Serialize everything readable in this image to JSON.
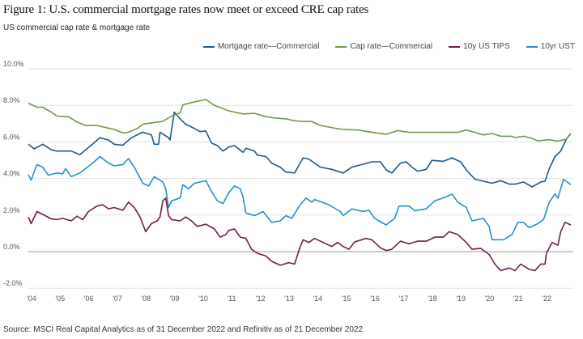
{
  "header": {
    "title": "Figure 1: U.S. commercial mortgage rates now meet or exceed CRE cap rates",
    "subtitle": "US commercial cap rate & mortgage rate"
  },
  "footer": {
    "source": "Source: MSCI Real Capital Analytics as of 31 December 2022 and Refinitiv as of 21 December 2022"
  },
  "chart_data": {
    "type": "line",
    "title": "US commercial cap rate & mortgage rate",
    "xlabel": "",
    "ylabel": "",
    "xlim": [
      2004,
      2022.95
    ],
    "ylim": [
      -2,
      10
    ],
    "grid": true,
    "legend_position": "top-right",
    "y_ticks": [
      "10.0%",
      "8.0%",
      "6.0%",
      "4.0%",
      "2.0%",
      "0.0%",
      "-2.0%"
    ],
    "y_tick_values": [
      10,
      8,
      6,
      4,
      2,
      0,
      -2
    ],
    "x_ticks": [
      "'04",
      "'05",
      "'06",
      "'07",
      "'08",
      "'09",
      "'10",
      "'11",
      "'12",
      "'13",
      "'14",
      "'15",
      "'16",
      "'17",
      "'18",
      "'19",
      "'20",
      "'21",
      "'22"
    ],
    "x_tick_values": [
      2004,
      2005,
      2006,
      2007,
      2008,
      2009,
      2010,
      2011,
      2012,
      2013,
      2014,
      2015,
      2016,
      2017,
      2018,
      2019,
      2020,
      2021,
      2022
    ],
    "series": [
      {
        "name": "Mortgage rate—Commercial",
        "color": "#1b5a87",
        "x": [
          2004.0,
          2004.2,
          2004.5,
          2004.8,
          2005.0,
          2005.5,
          2005.8,
          2006.0,
          2006.3,
          2006.5,
          2006.8,
          2007.0,
          2007.3,
          2007.6,
          2008.0,
          2008.3,
          2008.4,
          2008.55,
          2008.6,
          2008.9,
          2008.95,
          2009.1,
          2009.3,
          2009.5,
          2009.7,
          2010.0,
          2010.2,
          2010.4,
          2010.6,
          2010.8,
          2011.0,
          2011.2,
          2011.5,
          2011.6,
          2011.9,
          2012.0,
          2012.3,
          2012.5,
          2012.8,
          2013.0,
          2013.3,
          2013.6,
          2013.8,
          2014.2,
          2014.6,
          2015.0,
          2015.3,
          2015.6,
          2016.0,
          2016.3,
          2016.5,
          2016.7,
          2017.0,
          2017.2,
          2017.4,
          2017.6,
          2017.9,
          2018.1,
          2018.5,
          2018.8,
          2019.1,
          2019.3,
          2019.6,
          2019.9,
          2020.2,
          2020.5,
          2020.8,
          2021.0,
          2021.3,
          2021.6,
          2021.9,
          2022.05,
          2022.2,
          2022.4,
          2022.6,
          2022.8,
          2022.95
        ],
        "y": [
          5.87,
          5.62,
          5.87,
          5.57,
          5.5,
          5.5,
          5.3,
          5.57,
          5.95,
          6.23,
          6.1,
          5.87,
          5.82,
          6.23,
          6.53,
          6.38,
          5.87,
          5.87,
          6.53,
          6.23,
          6.1,
          7.63,
          7.26,
          6.97,
          6.82,
          6.56,
          6.6,
          5.94,
          5.8,
          5.5,
          5.72,
          5.8,
          5.43,
          5.65,
          5.5,
          5.28,
          5.2,
          4.84,
          4.62,
          4.35,
          4.3,
          5.13,
          5.06,
          4.62,
          4.5,
          4.3,
          4.62,
          4.74,
          4.91,
          4.91,
          4.47,
          4.3,
          4.84,
          4.91,
          4.62,
          4.4,
          4.5,
          4.99,
          4.94,
          5.13,
          4.91,
          4.47,
          3.96,
          3.85,
          3.74,
          3.88,
          3.69,
          3.69,
          3.81,
          3.54,
          3.81,
          3.85,
          4.54,
          5.2,
          5.5,
          6.16,
          6.46
        ]
      },
      {
        "name": "Cap rate—Commercial",
        "color": "#6f9a47",
        "x": [
          2004.0,
          2004.3,
          2004.5,
          2004.8,
          2005.0,
          2005.4,
          2005.7,
          2006.0,
          2006.4,
          2006.8,
          2007.0,
          2007.3,
          2007.5,
          2007.8,
          2008.0,
          2008.3,
          2008.7,
          2009.0,
          2009.3,
          2009.4,
          2009.7,
          2010.0,
          2010.2,
          2010.5,
          2010.8,
          2011.0,
          2011.5,
          2011.9,
          2012.3,
          2012.6,
          2013.0,
          2013.2,
          2013.5,
          2013.9,
          2014.2,
          2014.7,
          2015.0,
          2015.5,
          2016.0,
          2016.5,
          2016.9,
          2017.3,
          2017.8,
          2018.3,
          2018.7,
          2019.0,
          2019.3,
          2019.6,
          2019.9,
          2020.2,
          2020.5,
          2020.9,
          2021.0,
          2021.3,
          2021.6,
          2021.8,
          2022.2,
          2022.5,
          2022.8,
          2022.95
        ],
        "y": [
          8.12,
          7.9,
          7.9,
          7.63,
          7.41,
          7.38,
          7.09,
          6.9,
          6.9,
          6.75,
          6.68,
          6.49,
          6.53,
          6.72,
          6.97,
          7.04,
          7.12,
          7.41,
          7.59,
          8.03,
          8.15,
          8.25,
          8.32,
          8.0,
          7.82,
          7.7,
          7.53,
          7.56,
          7.38,
          7.31,
          7.26,
          7.19,
          7.12,
          7.12,
          6.9,
          6.75,
          6.68,
          6.65,
          6.53,
          6.41,
          6.62,
          6.52,
          6.52,
          6.52,
          6.53,
          6.52,
          6.65,
          6.52,
          6.38,
          6.46,
          6.31,
          6.31,
          6.24,
          6.31,
          6.19,
          6.06,
          6.12,
          6.04,
          6.16,
          6.46
        ]
      },
      {
        "name": "10y US TIPS",
        "color": "#6b1f4f",
        "x": [
          2004.0,
          2004.1,
          2004.3,
          2004.5,
          2004.8,
          2005.0,
          2005.2,
          2005.5,
          2005.7,
          2005.9,
          2006.1,
          2006.4,
          2006.6,
          2006.8,
          2007.0,
          2007.3,
          2007.5,
          2007.7,
          2007.9,
          2008.1,
          2008.3,
          2008.5,
          2008.6,
          2008.7,
          2008.8,
          2008.9,
          2009.0,
          2009.3,
          2009.5,
          2009.7,
          2009.9,
          2010.2,
          2010.5,
          2010.7,
          2010.9,
          2011.0,
          2011.2,
          2011.4,
          2011.6,
          2011.8,
          2012.0,
          2012.3,
          2012.5,
          2012.8,
          2013.1,
          2013.3,
          2013.5,
          2013.6,
          2013.8,
          2014.0,
          2014.3,
          2014.6,
          2014.8,
          2015.0,
          2015.2,
          2015.4,
          2015.8,
          2016.0,
          2016.3,
          2016.5,
          2016.7,
          2017.0,
          2017.3,
          2017.6,
          2017.9,
          2018.2,
          2018.5,
          2018.7,
          2019.0,
          2019.3,
          2019.5,
          2019.8,
          2020.1,
          2020.3,
          2020.5,
          2020.8,
          2021.0,
          2021.2,
          2021.5,
          2021.7,
          2021.9,
          2022.05,
          2022.1,
          2022.3,
          2022.5,
          2022.6,
          2022.75,
          2022.95
        ],
        "y": [
          1.9,
          1.53,
          2.19,
          2.04,
          1.79,
          1.75,
          1.82,
          1.68,
          1.94,
          1.75,
          2.19,
          2.49,
          2.56,
          2.34,
          2.41,
          2.26,
          2.71,
          2.41,
          1.9,
          1.09,
          1.53,
          1.68,
          1.9,
          2.78,
          2.93,
          1.97,
          1.75,
          1.68,
          1.9,
          1.68,
          1.38,
          1.5,
          1.24,
          0.79,
          0.94,
          1.16,
          1.24,
          0.79,
          0.72,
          0.13,
          -0.09,
          -0.24,
          -0.53,
          -0.75,
          -0.6,
          -0.68,
          0.28,
          0.65,
          0.5,
          0.72,
          0.5,
          0.28,
          0.5,
          0.28,
          0.13,
          0.53,
          0.72,
          0.65,
          0.21,
          0.06,
          0.13,
          0.57,
          0.43,
          0.57,
          0.57,
          0.79,
          0.79,
          1.09,
          0.94,
          0.5,
          0.13,
          0.18,
          -0.16,
          -0.68,
          -1.04,
          -0.9,
          -1.04,
          -0.68,
          -0.97,
          -1.04,
          -0.68,
          -0.68,
          -0.09,
          0.5,
          0.35,
          1.09,
          1.6,
          1.46
        ]
      },
      {
        "name": "10yr UST",
        "color": "#2590cd",
        "x": [
          2004.0,
          2004.1,
          2004.3,
          2004.5,
          2004.7,
          2005.0,
          2005.2,
          2005.3,
          2005.5,
          2005.8,
          2006.0,
          2006.3,
          2006.5,
          2006.8,
          2007.0,
          2007.3,
          2007.5,
          2007.7,
          2008.0,
          2008.2,
          2008.4,
          2008.7,
          2008.8,
          2008.9,
          2009.0,
          2009.3,
          2009.4,
          2009.6,
          2009.8,
          2010.0,
          2010.2,
          2010.4,
          2010.6,
          2010.8,
          2011.0,
          2011.2,
          2011.4,
          2011.5,
          2011.6,
          2011.9,
          2012.2,
          2012.5,
          2012.8,
          2013.0,
          2013.2,
          2013.5,
          2013.7,
          2013.9,
          2014.0,
          2014.5,
          2014.9,
          2015.0,
          2015.3,
          2015.7,
          2015.9,
          2016.1,
          2016.5,
          2016.8,
          2016.95,
          2017.3,
          2017.5,
          2017.9,
          2018.2,
          2018.6,
          2018.8,
          2019.0,
          2019.3,
          2019.5,
          2019.9,
          2020.1,
          2020.2,
          2020.6,
          2020.9,
          2021.1,
          2021.3,
          2021.5,
          2021.8,
          2022.0,
          2022.2,
          2022.4,
          2022.5,
          2022.7,
          2022.95
        ],
        "y": [
          4.21,
          3.91,
          4.76,
          4.62,
          4.18,
          4.3,
          4.25,
          4.54,
          4.1,
          4.3,
          4.54,
          4.91,
          5.2,
          4.84,
          4.69,
          4.76,
          5.09,
          4.62,
          3.74,
          3.59,
          4.1,
          3.81,
          3.44,
          2.41,
          2.78,
          2.93,
          3.66,
          3.44,
          3.74,
          3.81,
          3.88,
          3.29,
          2.78,
          2.63,
          3.22,
          3.59,
          3.44,
          3.0,
          2.12,
          1.97,
          2.19,
          1.6,
          1.68,
          1.97,
          1.82,
          2.56,
          2.93,
          2.71,
          2.85,
          2.56,
          2.19,
          1.97,
          2.34,
          2.19,
          2.26,
          1.82,
          1.46,
          1.82,
          2.49,
          2.49,
          2.24,
          2.34,
          2.78,
          3.0,
          3.15,
          2.71,
          2.41,
          1.68,
          1.82,
          1.38,
          0.65,
          0.65,
          0.94,
          1.6,
          1.6,
          1.31,
          1.53,
          1.75,
          2.71,
          3.15,
          2.93,
          3.96,
          3.66
        ]
      }
    ]
  }
}
